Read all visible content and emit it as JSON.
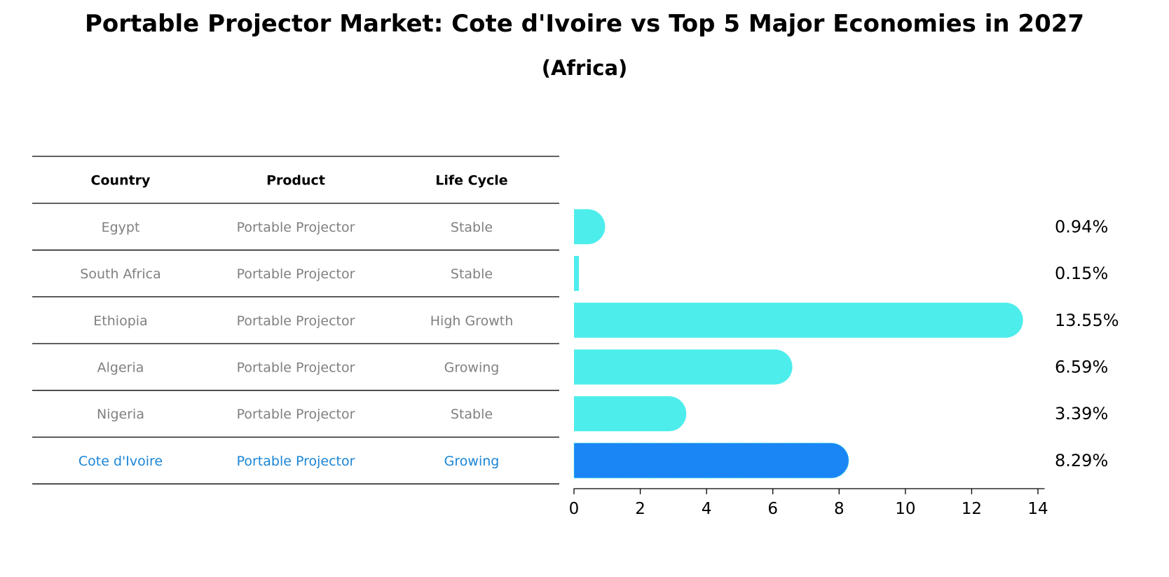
{
  "title": "Portable Projector Market: Cote d'Ivoire vs Top 5 Major Economies in 2027",
  "subtitle": "(Africa)",
  "table": {
    "headers": [
      "Country",
      "Product",
      "Life Cycle"
    ],
    "rows": [
      [
        "Egypt",
        "Portable Projector",
        "Stable"
      ],
      [
        "South Africa",
        "Portable Projector",
        "Stable"
      ],
      [
        "Ethiopia",
        "Portable Projector",
        "High Growth"
      ],
      [
        "Algeria",
        "Portable Projector",
        "Growing"
      ],
      [
        "Nigeria",
        "Portable Projector",
        "Stable"
      ],
      [
        "Cote d'Ivoire",
        "Portable Projector",
        "Growing"
      ]
    ],
    "highlight_row": 5
  },
  "colors": {
    "bar": "#4dedec",
    "highlight_bar": "#1a85f5",
    "highlight_text": "#1a85d6",
    "row_text": "#808080"
  },
  "chart_data": {
    "type": "bar",
    "orientation": "horizontal",
    "categories": [
      "Egypt",
      "South Africa",
      "Ethiopia",
      "Algeria",
      "Nigeria",
      "Cote d'Ivoire"
    ],
    "values": [
      0.94,
      0.15,
      13.55,
      6.59,
      3.39,
      8.29
    ],
    "value_labels": [
      "0.94%",
      "0.15%",
      "13.55%",
      "6.59%",
      "3.39%",
      "8.29%"
    ],
    "highlight": "Cote d'Ivoire",
    "xlim": [
      0,
      14.2
    ],
    "xticks": [
      0,
      2,
      4,
      6,
      8,
      10,
      12,
      14
    ],
    "xlabel": "",
    "ylabel": "",
    "grid": false
  }
}
